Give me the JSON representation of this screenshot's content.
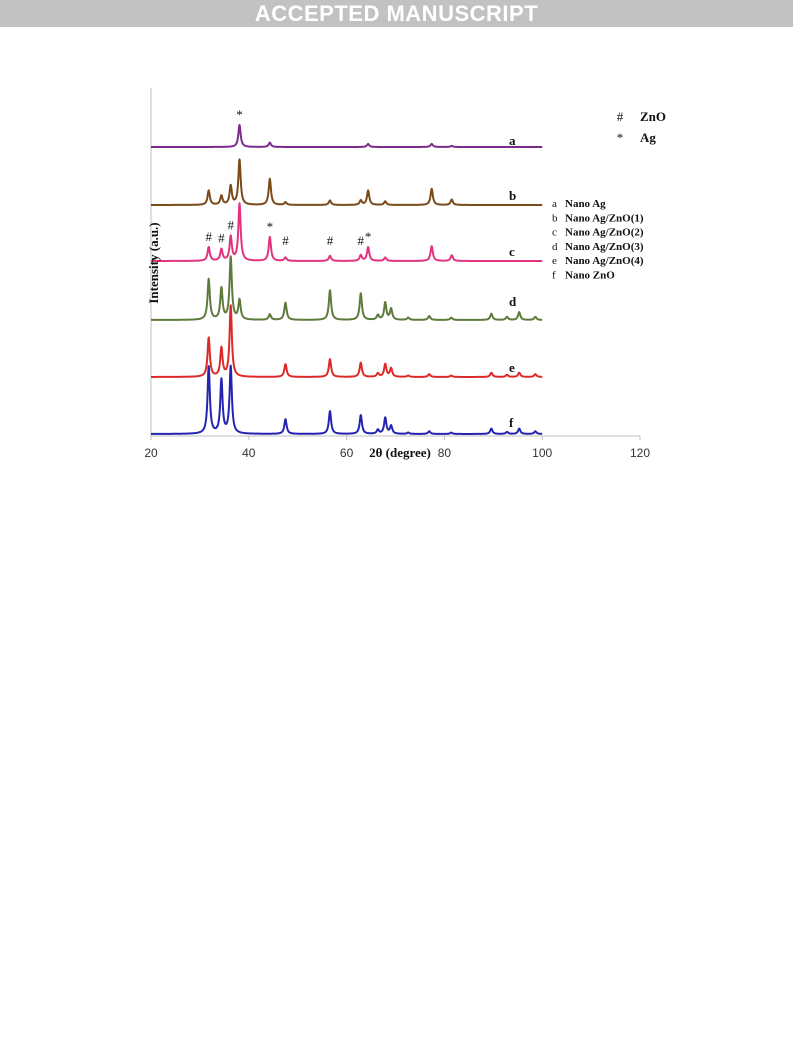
{
  "banner": "ACCEPTED MANUSCRIPT",
  "chart_data": {
    "type": "line",
    "xlabel": "2θ (degree)",
    "ylabel": "Intensity (a.u.)",
    "xlim": [
      20,
      120
    ],
    "xticks": [
      20,
      40,
      60,
      80,
      100,
      120
    ],
    "grid": false,
    "symbol_legend": [
      {
        "symbol": "#",
        "label": "ZnO"
      },
      {
        "symbol": "*",
        "label": "Ag"
      }
    ],
    "series_legend": [
      {
        "letter": "a",
        "name": "Nano Ag"
      },
      {
        "letter": "b",
        "name": "Nano Ag/ZnO(1)"
      },
      {
        "letter": "c",
        "name": "Nano Ag/ZnO(2)"
      },
      {
        "letter": "d",
        "name": "Nano Ag/ZnO(3)"
      },
      {
        "letter": "e",
        "name": "Nano Ag/ZnO(4)"
      },
      {
        "letter": "f",
        "name": "Nano ZnO"
      }
    ],
    "series": [
      {
        "letter": "a",
        "name": "Nano Ag",
        "color": "#7b2c8a",
        "peaks": [
          [
            38.1,
            1.0
          ],
          [
            44.3,
            0.2
          ],
          [
            64.4,
            0.14
          ],
          [
            77.4,
            0.14
          ],
          [
            81.5,
            0.05
          ]
        ]
      },
      {
        "letter": "b",
        "name": "Nano Ag/ZnO(1)",
        "color": "#7a4a1a",
        "peaks": [
          [
            31.8,
            0.32
          ],
          [
            34.4,
            0.2
          ],
          [
            36.3,
            0.42
          ],
          [
            38.1,
            1.0
          ],
          [
            44.3,
            0.58
          ],
          [
            47.5,
            0.06
          ],
          [
            56.6,
            0.1
          ],
          [
            62.9,
            0.1
          ],
          [
            64.4,
            0.32
          ],
          [
            67.9,
            0.08
          ],
          [
            77.4,
            0.36
          ],
          [
            81.5,
            0.12
          ]
        ]
      },
      {
        "letter": "c",
        "name": "Nano Ag/ZnO(2)",
        "color": "#e2337f",
        "peaks": [
          [
            31.8,
            0.24
          ],
          [
            34.4,
            0.2
          ],
          [
            36.3,
            0.42
          ],
          [
            38.1,
            1.0
          ],
          [
            44.3,
            0.42
          ],
          [
            47.5,
            0.06
          ],
          [
            56.6,
            0.09
          ],
          [
            62.9,
            0.1
          ],
          [
            64.4,
            0.24
          ],
          [
            67.9,
            0.06
          ],
          [
            77.4,
            0.26
          ],
          [
            81.5,
            0.1
          ]
        ]
      },
      {
        "letter": "d",
        "name": "Nano Ag/ZnO(3)",
        "color": "#5e7a3c",
        "peaks": [
          [
            31.8,
            0.52
          ],
          [
            34.4,
            0.4
          ],
          [
            36.3,
            0.8
          ],
          [
            38.1,
            0.25
          ],
          [
            44.3,
            0.07
          ],
          [
            47.5,
            0.22
          ],
          [
            56.6,
            0.38
          ],
          [
            62.9,
            0.34
          ],
          [
            66.4,
            0.06
          ],
          [
            67.9,
            0.22
          ],
          [
            69.1,
            0.14
          ],
          [
            72.6,
            0.03
          ],
          [
            76.9,
            0.05
          ],
          [
            81.4,
            0.03
          ],
          [
            89.6,
            0.08
          ],
          [
            92.8,
            0.04
          ],
          [
            95.3,
            0.1
          ],
          [
            98.6,
            0.04
          ]
        ]
      },
      {
        "letter": "e",
        "name": "Nano Ag/ZnO(4)",
        "color": "#dc2a2a",
        "peaks": [
          [
            31.8,
            0.55
          ],
          [
            34.4,
            0.4
          ],
          [
            36.3,
            1.0
          ],
          [
            47.5,
            0.18
          ],
          [
            56.6,
            0.25
          ],
          [
            62.9,
            0.2
          ],
          [
            66.4,
            0.05
          ],
          [
            67.9,
            0.18
          ],
          [
            69.1,
            0.12
          ],
          [
            72.6,
            0.02
          ],
          [
            76.9,
            0.04
          ],
          [
            81.4,
            0.02
          ],
          [
            89.6,
            0.06
          ],
          [
            92.8,
            0.03
          ],
          [
            95.3,
            0.06
          ],
          [
            98.6,
            0.04
          ]
        ]
      },
      {
        "letter": "f",
        "name": "Nano ZnO",
        "color": "#2424b0",
        "peaks": [
          [
            31.8,
            1.0
          ],
          [
            34.4,
            0.8
          ],
          [
            36.3,
            1.0
          ],
          [
            47.5,
            0.22
          ],
          [
            56.6,
            0.34
          ],
          [
            62.9,
            0.28
          ],
          [
            66.4,
            0.06
          ],
          [
            67.9,
            0.24
          ],
          [
            69.1,
            0.12
          ],
          [
            72.6,
            0.02
          ],
          [
            76.9,
            0.04
          ],
          [
            81.4,
            0.02
          ],
          [
            89.6,
            0.08
          ],
          [
            92.8,
            0.03
          ],
          [
            95.3,
            0.08
          ],
          [
            98.6,
            0.04
          ]
        ]
      }
    ],
    "peak_markers": [
      {
        "symbol": "*",
        "x": 38.1,
        "curve": "a"
      },
      {
        "symbol": "#",
        "x": 31.8,
        "curve": "c"
      },
      {
        "symbol": "#",
        "x": 34.4,
        "curve": "c"
      },
      {
        "symbol": "#",
        "x": 36.3,
        "curve": "c"
      },
      {
        "symbol": "*",
        "x": 44.3,
        "curve": "c"
      },
      {
        "symbol": "#",
        "x": 47.5,
        "curve": "c"
      },
      {
        "symbol": "#",
        "x": 56.6,
        "curve": "c"
      },
      {
        "symbol": "#",
        "x": 62.9,
        "curve": "c"
      },
      {
        "symbol": "*",
        "x": 64.4,
        "curve": "c"
      }
    ]
  }
}
